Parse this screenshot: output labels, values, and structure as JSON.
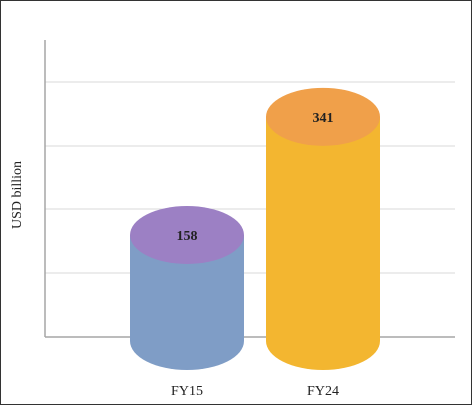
{
  "chart_data": {
    "type": "cylinder",
    "y_label": "USD billion",
    "categories": [
      "FY15",
      "FY24"
    ],
    "values": [
      158,
      341
    ],
    "colors": [
      "#7f9dc6",
      "#f3b630"
    ],
    "cap_colors": [
      "#9c80c4",
      "#f0a04a"
    ],
    "ylim": [
      0,
      460
    ],
    "grid": true
  }
}
